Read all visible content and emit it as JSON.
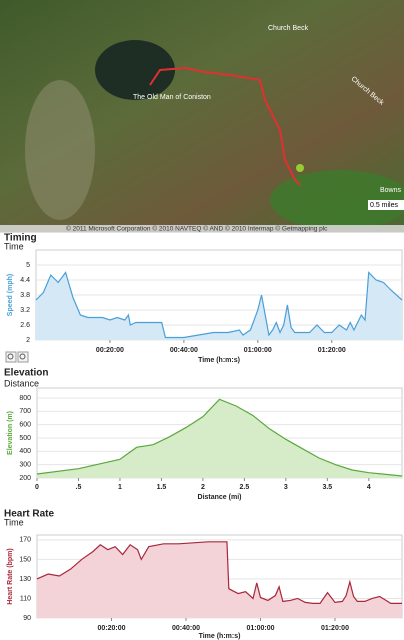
{
  "map": {
    "labels": [
      "The Old Man of Coniston",
      "Church Beck",
      "Church Beck",
      "Bowns"
    ],
    "scale": "0.5 miles",
    "attribution": "© 2011 Microsoft Corporation  © 2010 NAVTEQ  © AND  © 2010 Intermap  © Getmapping plc"
  },
  "chart_data": [
    {
      "type": "area",
      "title": "Timing",
      "subtitle": "Time",
      "x_label": "Time (h:m:s)",
      "y_label": "Speed (mph)",
      "color": "#4a9fd8",
      "fill": "#d4e8f6",
      "x": [
        0,
        120,
        240,
        360,
        480,
        600,
        720,
        840,
        960,
        1080,
        1200,
        1320,
        1440,
        1500,
        1530,
        1620,
        1800,
        1920,
        2040,
        2100,
        2280,
        2400,
        2640,
        2880,
        3120,
        3300,
        3360,
        3480,
        3600,
        3660,
        3720,
        3780,
        3840,
        3900,
        3960,
        4020,
        4080,
        4140,
        4200,
        4320,
        4440,
        4560,
        4680,
        4800,
        4920,
        5040,
        5100,
        5160,
        5280,
        5340,
        5400,
        5520,
        5640,
        5760,
        5940
      ],
      "series": [
        {
          "name": "Speed",
          "values": [
            3.6,
            3.9,
            4.6,
            4.3,
            4.7,
            3.7,
            3.0,
            2.9,
            2.9,
            2.9,
            2.8,
            2.9,
            2.8,
            3.0,
            2.6,
            2.7,
            2.7,
            2.7,
            2.7,
            2.1,
            2.1,
            2.1,
            2.2,
            2.3,
            2.3,
            2.4,
            2.2,
            2.4,
            3.2,
            3.8,
            3.0,
            2.2,
            2.4,
            2.7,
            2.3,
            2.6,
            3.4,
            2.5,
            2.3,
            2.3,
            2.3,
            2.6,
            2.3,
            2.3,
            2.6,
            2.4,
            2.7,
            2.4,
            3.0,
            2.8,
            4.7,
            4.4,
            4.3,
            4.0,
            3.6
          ]
        }
      ],
      "xlim": [
        0,
        5940
      ],
      "ylim": [
        2,
        5.6
      ],
      "xticks": [
        {
          "value": 1200,
          "label": "00:20:00"
        },
        {
          "value": 2400,
          "label": "00:40:00"
        },
        {
          "value": 3600,
          "label": "01:00:00"
        },
        {
          "value": 4800,
          "label": "01:20:00"
        }
      ],
      "yticks": [
        2,
        2.6,
        3.2,
        3.8,
        4.4,
        5
      ]
    },
    {
      "type": "area",
      "title": "Elevation",
      "subtitle": "Distance",
      "x_label": "Distance (mi)",
      "y_label": "Elevation (m)",
      "color": "#5aa83c",
      "fill": "#d6ecc8",
      "x": [
        0,
        0.5,
        1,
        1.2,
        1.4,
        1.6,
        1.8,
        2,
        2.2,
        2.4,
        2.6,
        2.8,
        3,
        3.2,
        3.4,
        3.6,
        3.8,
        4,
        4.4
      ],
      "series": [
        {
          "name": "Elevation",
          "values": [
            230,
            270,
            340,
            430,
            450,
            510,
            580,
            660,
            790,
            740,
            670,
            570,
            490,
            420,
            350,
            300,
            260,
            240,
            215
          ]
        }
      ],
      "xlim": [
        0,
        4.4
      ],
      "ylim": [
        200,
        875
      ],
      "xticks": [
        0,
        {
          "value": 0.5,
          "label": ".5"
        },
        1,
        1.5,
        2,
        2.5,
        3,
        3.5,
        4
      ],
      "yticks": [
        200,
        300,
        400,
        500,
        600,
        700,
        800
      ]
    },
    {
      "type": "area",
      "title": "Heart Rate",
      "subtitle": "Time",
      "x_label": "Time (h:m:s)",
      "y_label": "Heart Rate (bpm)",
      "color": "#a8283a",
      "fill": "#f3d3d8",
      "x": [
        0,
        180,
        360,
        540,
        720,
        900,
        1020,
        1140,
        1260,
        1380,
        1500,
        1620,
        1680,
        1800,
        2040,
        2280,
        2520,
        2760,
        3000,
        3060,
        3090,
        3240,
        3360,
        3480,
        3540,
        3600,
        3720,
        3840,
        3900,
        3960,
        4080,
        4200,
        4320,
        4440,
        4560,
        4680,
        4800,
        4920,
        4980,
        5040,
        5100,
        5160,
        5280,
        5400,
        5520,
        5700,
        5880
      ],
      "series": [
        {
          "name": "Heart Rate",
          "values": [
            130,
            135,
            133,
            140,
            150,
            158,
            165,
            160,
            163,
            155,
            165,
            160,
            150,
            163,
            166,
            166,
            167,
            168,
            168,
            168,
            120,
            115,
            117,
            110,
            126,
            111,
            108,
            113,
            122,
            107,
            108,
            110,
            106,
            105,
            105,
            116,
            106,
            107,
            113,
            127,
            112,
            107,
            107,
            110,
            112,
            105,
            105
          ]
        }
      ],
      "xlim": [
        0,
        5880
      ],
      "ylim": [
        90,
        175
      ],
      "xticks": [
        {
          "value": 1200,
          "label": "00:20:00"
        },
        {
          "value": 2400,
          "label": "00:40:00"
        },
        {
          "value": 3600,
          "label": "01:00:00"
        },
        {
          "value": 4800,
          "label": "01:20:00"
        }
      ],
      "yticks": [
        90,
        110,
        130,
        150,
        170
      ]
    }
  ]
}
